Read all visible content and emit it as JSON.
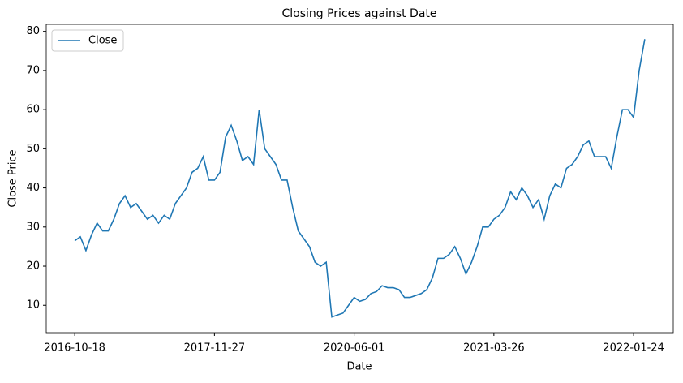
{
  "chart_data": {
    "type": "line",
    "title": "Closing Prices against Date",
    "x_label": "Date",
    "y_label": "Close Price",
    "categories": [
      "2016-10-18",
      null,
      null,
      null,
      null,
      null,
      null,
      null,
      null,
      null,
      null,
      null,
      null,
      null,
      null,
      null,
      null,
      null,
      null,
      null,
      null,
      null,
      null,
      null,
      null,
      "2017-11-27",
      null,
      null,
      null,
      null,
      null,
      null,
      null,
      null,
      null,
      null,
      null,
      null,
      null,
      null,
      null,
      null,
      null,
      null,
      null,
      null,
      null,
      null,
      null,
      null,
      "2020-06-01",
      null,
      null,
      null,
      null,
      null,
      null,
      null,
      null,
      null,
      null,
      null,
      null,
      null,
      null,
      null,
      null,
      null,
      null,
      null,
      null,
      null,
      null,
      null,
      null,
      "2021-03-26",
      null,
      null,
      null,
      null,
      null,
      null,
      null,
      null,
      null,
      null,
      null,
      null,
      null,
      null,
      null,
      null,
      null,
      null,
      null,
      null,
      null,
      null,
      null,
      null,
      "2022-01-24",
      null,
      null
    ],
    "series": [
      {
        "name": "Close",
        "color": "#1f77b4",
        "values": [
          26.5,
          27.5,
          24,
          28,
          31,
          29,
          29,
          32,
          36,
          38,
          35,
          36,
          34,
          32,
          33,
          31,
          33,
          32,
          36,
          38,
          40,
          44,
          45,
          48,
          42,
          42,
          44,
          53,
          56,
          52,
          47,
          48,
          46,
          60,
          50,
          48,
          46,
          42,
          42,
          35,
          29,
          27,
          25,
          21,
          20,
          21,
          7,
          7.5,
          8,
          10,
          12,
          11,
          11.5,
          13,
          13.5,
          15,
          14.5,
          14.5,
          14,
          12,
          12,
          12.5,
          13,
          14,
          17,
          22,
          22,
          23,
          25,
          22,
          18,
          21,
          25,
          30,
          30,
          32,
          33,
          35,
          39,
          37,
          40,
          38,
          35,
          37,
          32,
          38,
          41,
          40,
          45,
          46,
          48,
          51,
          52,
          48,
          48,
          48,
          45,
          53,
          60,
          60,
          58,
          70,
          78
        ]
      }
    ],
    "xlim": [
      -5.1,
      107.1
    ],
    "ylim": [
      3,
      81.8
    ],
    "yticks": [
      10,
      20,
      30,
      40,
      50,
      60,
      70,
      80
    ],
    "legend": "upper left"
  }
}
